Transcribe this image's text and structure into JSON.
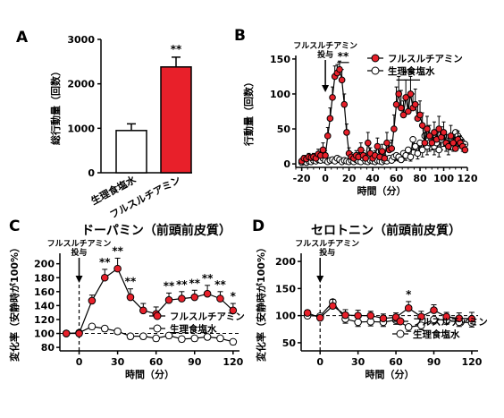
{
  "red_color": "#e8202a",
  "chart_data": [
    {
      "panel": "A",
      "type": "bar",
      "categories": [
        "生理食塩水",
        "フルスルチアミン"
      ],
      "values": [
        950,
        2380
      ],
      "errors": [
        150,
        220
      ],
      "colors": [
        "#ffffff",
        "#e8202a"
      ],
      "ylabel": "総行動量（回数）",
      "ylim": [
        0,
        3000
      ],
      "yticks": [
        "0",
        "1000",
        "2000",
        "3000"
      ],
      "annotation": "**"
    },
    {
      "panel": "B",
      "type": "line",
      "ylabel": "行動量（回数）",
      "xlabel": "時間（分）",
      "xlim": [
        -25,
        120
      ],
      "ylim": [
        -5,
        155
      ],
      "xticks": [
        "-20",
        "0",
        "20",
        "40",
        "60",
        "80",
        "100",
        "120"
      ],
      "yticks": [
        "0",
        "50",
        "100",
        "150"
      ],
      "injection_label": "フルスルチアミン 投与",
      "sig_labels": [
        "**",
        "**"
      ],
      "series": [
        {
          "name": "フルスルチアミン",
          "x": [
            -20,
            -18,
            -16,
            -14,
            -12,
            -10,
            -8,
            -6,
            -4,
            -2,
            0,
            2,
            4,
            6,
            8,
            10,
            12,
            14,
            16,
            18,
            20,
            22,
            24,
            26,
            28,
            30,
            32,
            34,
            36,
            38,
            40,
            42,
            44,
            46,
            48,
            50,
            52,
            54,
            56,
            58,
            60,
            62,
            64,
            66,
            68,
            70,
            72,
            74,
            76,
            78,
            80,
            82,
            84,
            86,
            88,
            90,
            92,
            94,
            96,
            98,
            100,
            102,
            104,
            106,
            108,
            110,
            112,
            114,
            116,
            118
          ],
          "values": [
            4,
            8,
            7,
            10,
            9,
            10,
            8,
            14,
            12,
            20,
            12,
            40,
            65,
            95,
            125,
            130,
            135,
            120,
            85,
            45,
            15,
            10,
            8,
            12,
            10,
            20,
            12,
            8,
            30,
            15,
            8,
            12,
            25,
            10,
            18,
            8,
            30,
            20,
            22,
            50,
            85,
            100,
            80,
            70,
            95,
            75,
            100,
            80,
            85,
            65,
            70,
            55,
            30,
            50,
            40,
            30,
            45,
            35,
            50,
            38,
            45,
            30,
            25,
            40,
            30,
            22,
            35,
            30,
            25,
            20
          ],
          "errors": [
            3,
            4,
            4,
            5,
            4,
            5,
            4,
            7,
            6,
            10,
            7,
            12,
            15,
            15,
            15,
            12,
            12,
            15,
            15,
            12,
            8,
            6,
            5,
            7,
            6,
            10,
            7,
            5,
            15,
            8,
            5,
            7,
            12,
            6,
            10,
            5,
            15,
            10,
            12,
            20,
            25,
            25,
            25,
            20,
            25,
            20,
            25,
            20,
            22,
            20,
            20,
            18,
            15,
            18,
            15,
            12,
            15,
            12,
            18,
            15,
            15,
            12,
            12,
            15,
            12,
            10,
            12,
            10,
            10,
            8
          ]
        },
        {
          "name": "生理食塩水",
          "x": [
            -20,
            -18,
            -16,
            -14,
            -12,
            -10,
            -8,
            -6,
            -4,
            -2,
            0,
            2,
            4,
            6,
            8,
            10,
            12,
            14,
            16,
            18,
            20,
            22,
            24,
            26,
            28,
            30,
            32,
            34,
            36,
            38,
            40,
            42,
            44,
            46,
            48,
            50,
            52,
            54,
            56,
            58,
            60,
            62,
            64,
            66,
            68,
            70,
            72,
            74,
            76,
            78,
            80,
            82,
            84,
            86,
            88,
            90,
            92,
            94,
            96,
            98,
            100,
            102,
            104,
            106,
            108,
            110,
            112,
            114,
            116,
            118
          ],
          "values": [
            2,
            3,
            2,
            4,
            3,
            5,
            4,
            6,
            5,
            8,
            5,
            3,
            5,
            6,
            4,
            8,
            6,
            3,
            5,
            4,
            3,
            5,
            3,
            6,
            4,
            3,
            8,
            4,
            3,
            5,
            4,
            3,
            5,
            4,
            3,
            5,
            4,
            8,
            5,
            10,
            12,
            10,
            6,
            15,
            12,
            20,
            10,
            35,
            25,
            15,
            30,
            20,
            40,
            25,
            30,
            35,
            25,
            30,
            20,
            35,
            40,
            30,
            25,
            35,
            30,
            45,
            40,
            35,
            30,
            28
          ],
          "errors": [
            2,
            2,
            2,
            3,
            2,
            3,
            2,
            4,
            3,
            5,
            3,
            2,
            3,
            4,
            2,
            5,
            4,
            2,
            3,
            2,
            2,
            3,
            2,
            4,
            2,
            2,
            5,
            2,
            2,
            3,
            2,
            2,
            3,
            2,
            2,
            3,
            2,
            5,
            3,
            6,
            7,
            6,
            4,
            8,
            7,
            10,
            6,
            15,
            12,
            8,
            12,
            10,
            15,
            12,
            12,
            15,
            12,
            12,
            10,
            15,
            15,
            12,
            12,
            15,
            12,
            15,
            15,
            12,
            12,
            12
          ]
        }
      ],
      "legend": [
        "フルスルチアミン",
        "生理食塩水"
      ]
    },
    {
      "panel": "C",
      "type": "line",
      "title": "ドーパミン（前頭前皮質）",
      "ylabel": "変化率（安静時が100%）",
      "xlabel": "時間（分）",
      "xlim": [
        -15,
        125
      ],
      "ylim": [
        75,
        215
      ],
      "xticks": [
        "0",
        "30",
        "60",
        "90",
        "120"
      ],
      "yticks": [
        "80",
        "100",
        "120",
        "140",
        "160",
        "180",
        "200"
      ],
      "injection_label": "フルスルチアミン 投与",
      "series": [
        {
          "name": "フルスルチアミン",
          "x": [
            -10,
            0,
            10,
            20,
            30,
            40,
            50,
            60,
            70,
            80,
            90,
            100,
            110,
            120
          ],
          "values": [
            100,
            100,
            147,
            180,
            193,
            152,
            133,
            128,
            148,
            150,
            152,
            157,
            150,
            133
          ],
          "errors": [
            3,
            3,
            8,
            12,
            15,
            12,
            10,
            10,
            10,
            10,
            10,
            12,
            10,
            10
          ],
          "sig": [
            "",
            "",
            "",
            "**",
            "**",
            "**",
            "",
            "",
            "**",
            "**",
            "**",
            "**",
            "**",
            "*"
          ]
        },
        {
          "name": "生理食塩水",
          "x": [
            -10,
            0,
            10,
            20,
            30,
            40,
            50,
            60,
            70,
            80,
            90,
            100,
            110,
            120
          ],
          "values": [
            100,
            101,
            110,
            107,
            103,
            96,
            96,
            93,
            97,
            92,
            93,
            95,
            93,
            88
          ],
          "errors": [
            2,
            2,
            4,
            4,
            4,
            4,
            4,
            4,
            4,
            4,
            4,
            4,
            4,
            4
          ]
        }
      ],
      "legend": [
        "フルスルチアミン",
        "生理食塩水"
      ]
    },
    {
      "panel": "D",
      "type": "line",
      "title": "セロトニン（前頭前皮質）",
      "ylabel": "変化率（安静時が100%）",
      "xlabel": "時間（分）",
      "xlim": [
        -15,
        125
      ],
      "ylim": [
        35,
        215
      ],
      "xticks": [
        "0",
        "30",
        "60",
        "90",
        "120"
      ],
      "yticks": [
        "50",
        "100",
        "150",
        "200"
      ],
      "injection_label": "フルスルチアミン 投与",
      "series": [
        {
          "name": "フルスルチアミン",
          "x": [
            -10,
            0,
            10,
            20,
            30,
            40,
            50,
            60,
            70,
            80,
            90,
            100,
            110,
            120
          ],
          "values": [
            105,
            96,
            118,
            101,
            100,
            100,
            95,
            97,
            114,
            98,
            110,
            98,
            95,
            94
          ],
          "errors": [
            5,
            5,
            12,
            10,
            10,
            8,
            8,
            8,
            12,
            10,
            10,
            8,
            10,
            12
          ],
          "sig": [
            "",
            "",
            "",
            "",
            "",
            "",
            "",
            "",
            "*",
            "",
            "",
            "",
            "",
            ""
          ]
        },
        {
          "name": "生理食塩水",
          "x": [
            -10,
            0,
            10,
            20,
            30,
            40,
            50,
            60,
            70,
            80,
            90,
            100,
            110,
            120
          ],
          "values": [
            100,
            99,
            125,
            94,
            88,
            89,
            88,
            92,
            79,
            82,
            93,
            92,
            88,
            87
          ],
          "errors": [
            5,
            5,
            10,
            8,
            8,
            8,
            8,
            8,
            8,
            8,
            8,
            8,
            8,
            8
          ]
        }
      ],
      "legend": [
        "フルスルチアミン",
        "生理食塩水"
      ]
    }
  ]
}
